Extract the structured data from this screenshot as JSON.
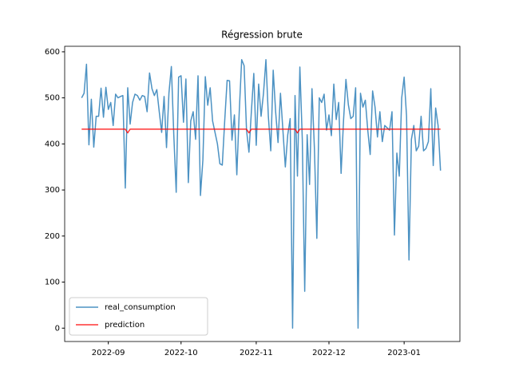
{
  "chart_data": {
    "type": "line",
    "title": "Régression brute",
    "x": [
      "2022-08-21",
      "2022-08-22",
      "2022-08-23",
      "2022-08-24",
      "2022-08-25",
      "2022-08-26",
      "2022-08-27",
      "2022-08-28",
      "2022-08-29",
      "2022-08-30",
      "2022-08-31",
      "2022-09-01",
      "2022-09-02",
      "2022-09-03",
      "2022-09-04",
      "2022-09-05",
      "2022-09-06",
      "2022-09-07",
      "2022-09-08",
      "2022-09-09",
      "2022-09-10",
      "2022-09-11",
      "2022-09-12",
      "2022-09-13",
      "2022-09-14",
      "2022-09-15",
      "2022-09-16",
      "2022-09-17",
      "2022-09-18",
      "2022-09-19",
      "2022-09-20",
      "2022-09-21",
      "2022-09-22",
      "2022-09-23",
      "2022-09-24",
      "2022-09-25",
      "2022-09-26",
      "2022-09-27",
      "2022-09-28",
      "2022-09-29",
      "2022-09-30",
      "2022-10-01",
      "2022-10-02",
      "2022-10-03",
      "2022-10-04",
      "2022-10-05",
      "2022-10-06",
      "2022-10-07",
      "2022-10-08",
      "2022-10-09",
      "2022-10-10",
      "2022-10-11",
      "2022-10-12",
      "2022-10-13",
      "2022-10-14",
      "2022-10-15",
      "2022-10-16",
      "2022-10-17",
      "2022-10-18",
      "2022-10-19",
      "2022-10-20",
      "2022-10-21",
      "2022-10-22",
      "2022-10-23",
      "2022-10-24",
      "2022-10-25",
      "2022-10-26",
      "2022-10-27",
      "2022-10-28",
      "2022-10-29",
      "2022-10-30",
      "2022-10-31",
      "2022-11-01",
      "2022-11-02",
      "2022-11-03",
      "2022-11-04",
      "2022-11-05",
      "2022-11-06",
      "2022-11-07",
      "2022-11-08",
      "2022-11-09",
      "2022-11-10",
      "2022-11-11",
      "2022-11-12",
      "2022-11-13",
      "2022-11-14",
      "2022-11-15",
      "2022-11-16",
      "2022-11-17",
      "2022-11-18",
      "2022-11-19",
      "2022-11-20",
      "2022-11-21",
      "2022-11-22",
      "2022-11-23",
      "2022-11-24",
      "2022-11-25",
      "2022-11-26",
      "2022-11-27",
      "2022-11-28",
      "2022-11-29",
      "2022-11-30",
      "2022-12-01",
      "2022-12-02",
      "2022-12-03",
      "2022-12-04",
      "2022-12-05",
      "2022-12-06",
      "2022-12-07",
      "2022-12-08",
      "2022-12-09",
      "2022-12-10",
      "2022-12-11",
      "2022-12-12",
      "2022-12-13",
      "2022-12-14",
      "2022-12-15",
      "2022-12-16",
      "2022-12-17",
      "2022-12-18",
      "2022-12-19",
      "2022-12-20",
      "2022-12-21",
      "2022-12-22",
      "2022-12-23",
      "2022-12-24",
      "2022-12-25",
      "2022-12-26",
      "2022-12-27",
      "2022-12-28",
      "2022-12-29",
      "2022-12-30",
      "2022-12-31",
      "2023-01-01",
      "2023-01-02",
      "2023-01-03",
      "2023-01-04",
      "2023-01-05",
      "2023-01-06",
      "2023-01-07",
      "2023-01-08",
      "2023-01-09",
      "2023-01-10",
      "2023-01-11",
      "2023-01-12",
      "2023-01-13",
      "2023-01-14",
      "2023-01-15",
      "2023-01-16"
    ],
    "series": [
      {
        "name": "real_consumption",
        "color": "#1f77b4",
        "values": [
          500,
          510,
          573,
          398,
          497,
          393,
          460,
          460,
          521,
          458,
          523,
          475,
          490,
          440,
          508,
          500,
          503,
          505,
          304,
          522,
          443,
          490,
          508,
          505,
          495,
          505,
          503,
          470,
          554,
          520,
          505,
          518,
          470,
          425,
          503,
          392,
          510,
          568,
          420,
          295,
          545,
          548,
          447,
          541,
          316,
          450,
          470,
          410,
          548,
          288,
          365,
          546,
          484,
          522,
          450,
          425,
          400,
          357,
          354,
          450,
          538,
          537,
          408,
          463,
          333,
          470,
          583,
          570,
          430,
          382,
          470,
          553,
          397,
          530,
          460,
          510,
          583,
          460,
          385,
          560,
          470,
          403,
          510,
          430,
          350,
          420,
          455,
          0,
          505,
          330,
          567,
          410,
          80,
          420,
          312,
          520,
          390,
          195,
          500,
          490,
          508,
          430,
          463,
          418,
          530,
          453,
          490,
          336,
          450,
          540,
          485,
          455,
          460,
          522,
          0,
          510,
          480,
          495,
          430,
          377,
          515,
          480,
          415,
          470,
          405,
          440,
          435,
          430,
          470,
          202,
          380,
          330,
          500,
          545,
          460,
          148,
          410,
          440,
          385,
          395,
          460,
          385,
          390,
          405,
          520,
          353,
          478,
          440,
          342
        ]
      },
      {
        "name": "prediction",
        "color": "#ff0000",
        "values": [
          432,
          432,
          432,
          432,
          432,
          432,
          432,
          432,
          432,
          432,
          432,
          432,
          432,
          432,
          432,
          432,
          432,
          432,
          432,
          424,
          432,
          432,
          432,
          432,
          432,
          432,
          432,
          432,
          432,
          432,
          432,
          432,
          432,
          432,
          432,
          432,
          432,
          432,
          432,
          432,
          432,
          432,
          432,
          432,
          432,
          432,
          432,
          432,
          432,
          432,
          432,
          432,
          432,
          432,
          432,
          432,
          432,
          432,
          432,
          432,
          432,
          432,
          432,
          432,
          432,
          432,
          432,
          432,
          432,
          424,
          432,
          432,
          432,
          432,
          432,
          432,
          432,
          432,
          432,
          432,
          432,
          432,
          432,
          432,
          432,
          432,
          432,
          432,
          432,
          424,
          432,
          432,
          432,
          432,
          432,
          432,
          432,
          432,
          432,
          432,
          432,
          432,
          432,
          432,
          432,
          432,
          432,
          432,
          432,
          432,
          432,
          432,
          432,
          432,
          432,
          432,
          432,
          432,
          432,
          432,
          432,
          432,
          432,
          432,
          432,
          432,
          432,
          432,
          432,
          432,
          432,
          432,
          432,
          432,
          432,
          432,
          432,
          432,
          432,
          432,
          432,
          432,
          432,
          432,
          432,
          432,
          432,
          432,
          432
        ]
      }
    ],
    "xlim": [
      "2022-08-14",
      "2023-01-24"
    ],
    "xticks": [
      {
        "value": "2022-09-01",
        "label": "2022-09"
      },
      {
        "value": "2022-10-01",
        "label": "2022-10"
      },
      {
        "value": "2022-11-01",
        "label": "2022-11"
      },
      {
        "value": "2022-12-01",
        "label": "2022-12"
      },
      {
        "value": "2023-01-01",
        "label": "2023-01"
      }
    ],
    "ylim": [
      -29,
      612
    ],
    "yticks": [
      0,
      100,
      200,
      300,
      400,
      500,
      600
    ],
    "legend": "lower left"
  }
}
